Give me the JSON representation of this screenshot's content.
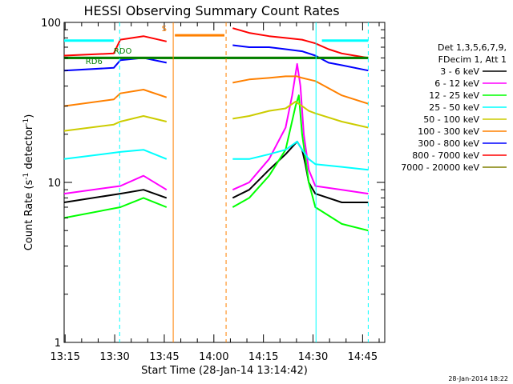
{
  "chart_data": {
    "type": "line",
    "title": "HESSI Observing Summary Count Rates",
    "xlabel": "Start Time (28-Jan-14 13:14:42)",
    "ylabel": "Count Rate (s",
    "ylabel_sup": "-1",
    "ylabel_tail": " detector",
    "ylabel_end": ")",
    "yscale": "log",
    "ylim": [
      1,
      100
    ],
    "xlim_minutes": [
      0,
      97
    ],
    "y_ticks": [
      {
        "v": 1,
        "label": "1"
      },
      {
        "v": 10,
        "label": "10"
      },
      {
        "v": 100,
        "label": "100"
      }
    ],
    "x_ticks": [
      {
        "m": 0.3,
        "label": "13:15"
      },
      {
        "m": 15.3,
        "label": "13:30"
      },
      {
        "m": 30.3,
        "label": "13:45"
      },
      {
        "m": 45.3,
        "label": "14:00"
      },
      {
        "m": 60.3,
        "label": "14:15"
      },
      {
        "m": 75.3,
        "label": "14:30"
      },
      {
        "m": 90.3,
        "label": "14:45"
      }
    ],
    "legend": {
      "position": "right",
      "header1": "Det 1,3,5,6,7,9,",
      "header2": "FDecim 1, Att 1"
    },
    "series": [
      {
        "name": "3 - 6 keV",
        "color": "#000000",
        "x": [
          0,
          17,
          24,
          31,
          32,
          51,
          56,
          62,
          67,
          70.5,
          72,
          73,
          74,
          76,
          84,
          92
        ],
        "y": [
          7.5,
          8.5,
          9,
          8,
          null,
          8,
          9,
          12,
          15,
          18,
          16,
          13,
          10,
          8.5,
          7.5,
          7.5
        ]
      },
      {
        "name": "6 - 12 keV",
        "color": "#ff00ff",
        "x": [
          0,
          17,
          24,
          31,
          32,
          51,
          56,
          62,
          67,
          69,
          70.5,
          71.5,
          72.5,
          74,
          76,
          84,
          92
        ],
        "y": [
          8.5,
          9.5,
          11,
          9,
          null,
          9,
          10,
          14,
          22,
          35,
          55,
          40,
          20,
          12,
          9.5,
          9,
          8.5
        ]
      },
      {
        "name": "12 - 25 keV",
        "color": "#00ff00",
        "x": [
          0,
          17,
          24,
          31,
          32,
          51,
          56,
          62,
          67,
          70,
          71,
          72,
          74,
          76,
          84,
          92
        ],
        "y": [
          6,
          7,
          8,
          7,
          null,
          7,
          8,
          11,
          16,
          30,
          35,
          20,
          10,
          7,
          5.5,
          5
        ]
      },
      {
        "name": "25 - 50 keV",
        "color": "#00ffff",
        "x": [
          0,
          17,
          24,
          31,
          32,
          51,
          56,
          62,
          67,
          70.5,
          72,
          74,
          76,
          84,
          92
        ],
        "y": [
          14,
          15.5,
          16,
          14,
          null,
          14,
          14,
          15,
          16,
          18,
          16,
          14,
          13,
          12.5,
          12
        ]
      },
      {
        "name": "50 - 100 keV",
        "color": "#cccc00",
        "x": [
          0,
          15,
          17,
          24,
          31,
          32,
          51,
          56,
          62,
          67,
          70,
          72,
          74,
          76,
          84,
          92
        ],
        "y": [
          21,
          23,
          24,
          26,
          24,
          null,
          25,
          26,
          28,
          29,
          32,
          30,
          28,
          27,
          24,
          22
        ]
      },
      {
        "name": "100 - 300 keV",
        "color": "#ff8000",
        "x": [
          0,
          15,
          17,
          24,
          31,
          32,
          51,
          56,
          62,
          67,
          70.5,
          72,
          76,
          84,
          92
        ],
        "y": [
          30,
          33,
          36,
          38,
          34,
          null,
          42,
          44,
          45,
          46,
          46,
          45,
          43,
          35,
          31
        ]
      },
      {
        "name": "300 - 800 keV",
        "color": "#0000ff",
        "x": [
          0,
          15,
          17,
          24,
          31,
          32,
          51,
          56,
          62,
          67,
          72,
          76,
          80,
          84,
          92
        ],
        "y": [
          50,
          52,
          58,
          60,
          56,
          null,
          72,
          70,
          70,
          68,
          66,
          62,
          56,
          54,
          50
        ]
      },
      {
        "name": "800 - 7000 keV",
        "color": "#ff0000",
        "x": [
          0,
          15,
          17,
          24,
          31,
          32,
          51,
          56,
          62,
          67,
          72,
          76,
          80,
          84,
          92
        ],
        "y": [
          62,
          64,
          78,
          82,
          76,
          null,
          92,
          86,
          82,
          80,
          78,
          74,
          68,
          64,
          60
        ]
      },
      {
        "name": "7000 - 20000 keV",
        "color": "#808000",
        "x": [
          0,
          92
        ],
        "y": [
          60,
          60
        ]
      }
    ],
    "extra_series": [
      {
        "color": "#00ffff",
        "x": [
          0,
          15
        ],
        "y": [
          77,
          77
        ]
      },
      {
        "color": "#00ffff",
        "x": [
          78,
          92
        ],
        "y": [
          77,
          77
        ]
      },
      {
        "color": "#008000",
        "x": [
          0,
          92
        ],
        "y": [
          60,
          60
        ]
      }
    ],
    "vertical_markers": [
      {
        "m": 16.8,
        "color": "#00ffff",
        "style": "dashed"
      },
      {
        "m": 33.0,
        "color": "#ff8000",
        "style": "solid"
      },
      {
        "m": 49.0,
        "color": "#ff8000",
        "style": "dashed"
      },
      {
        "m": 76.2,
        "color": "#00ffff",
        "style": "solid"
      },
      {
        "m": 92.0,
        "color": "#00ffff",
        "style": "dashed"
      }
    ],
    "saa_bar": {
      "from": 33.5,
      "to": 48.5,
      "y": 83,
      "color": "#ff8000"
    },
    "annotations": [
      {
        "text": "S",
        "m": 29.5,
        "y": 88,
        "color": "#ff8000"
      },
      {
        "text": "RDO",
        "m": 15.0,
        "y": 64,
        "color": "#008000"
      },
      {
        "text": "RD6",
        "m": 6.5,
        "y": 55,
        "color": "#008000"
      }
    ],
    "footer_date": "28-Jan-2014 18:22"
  }
}
